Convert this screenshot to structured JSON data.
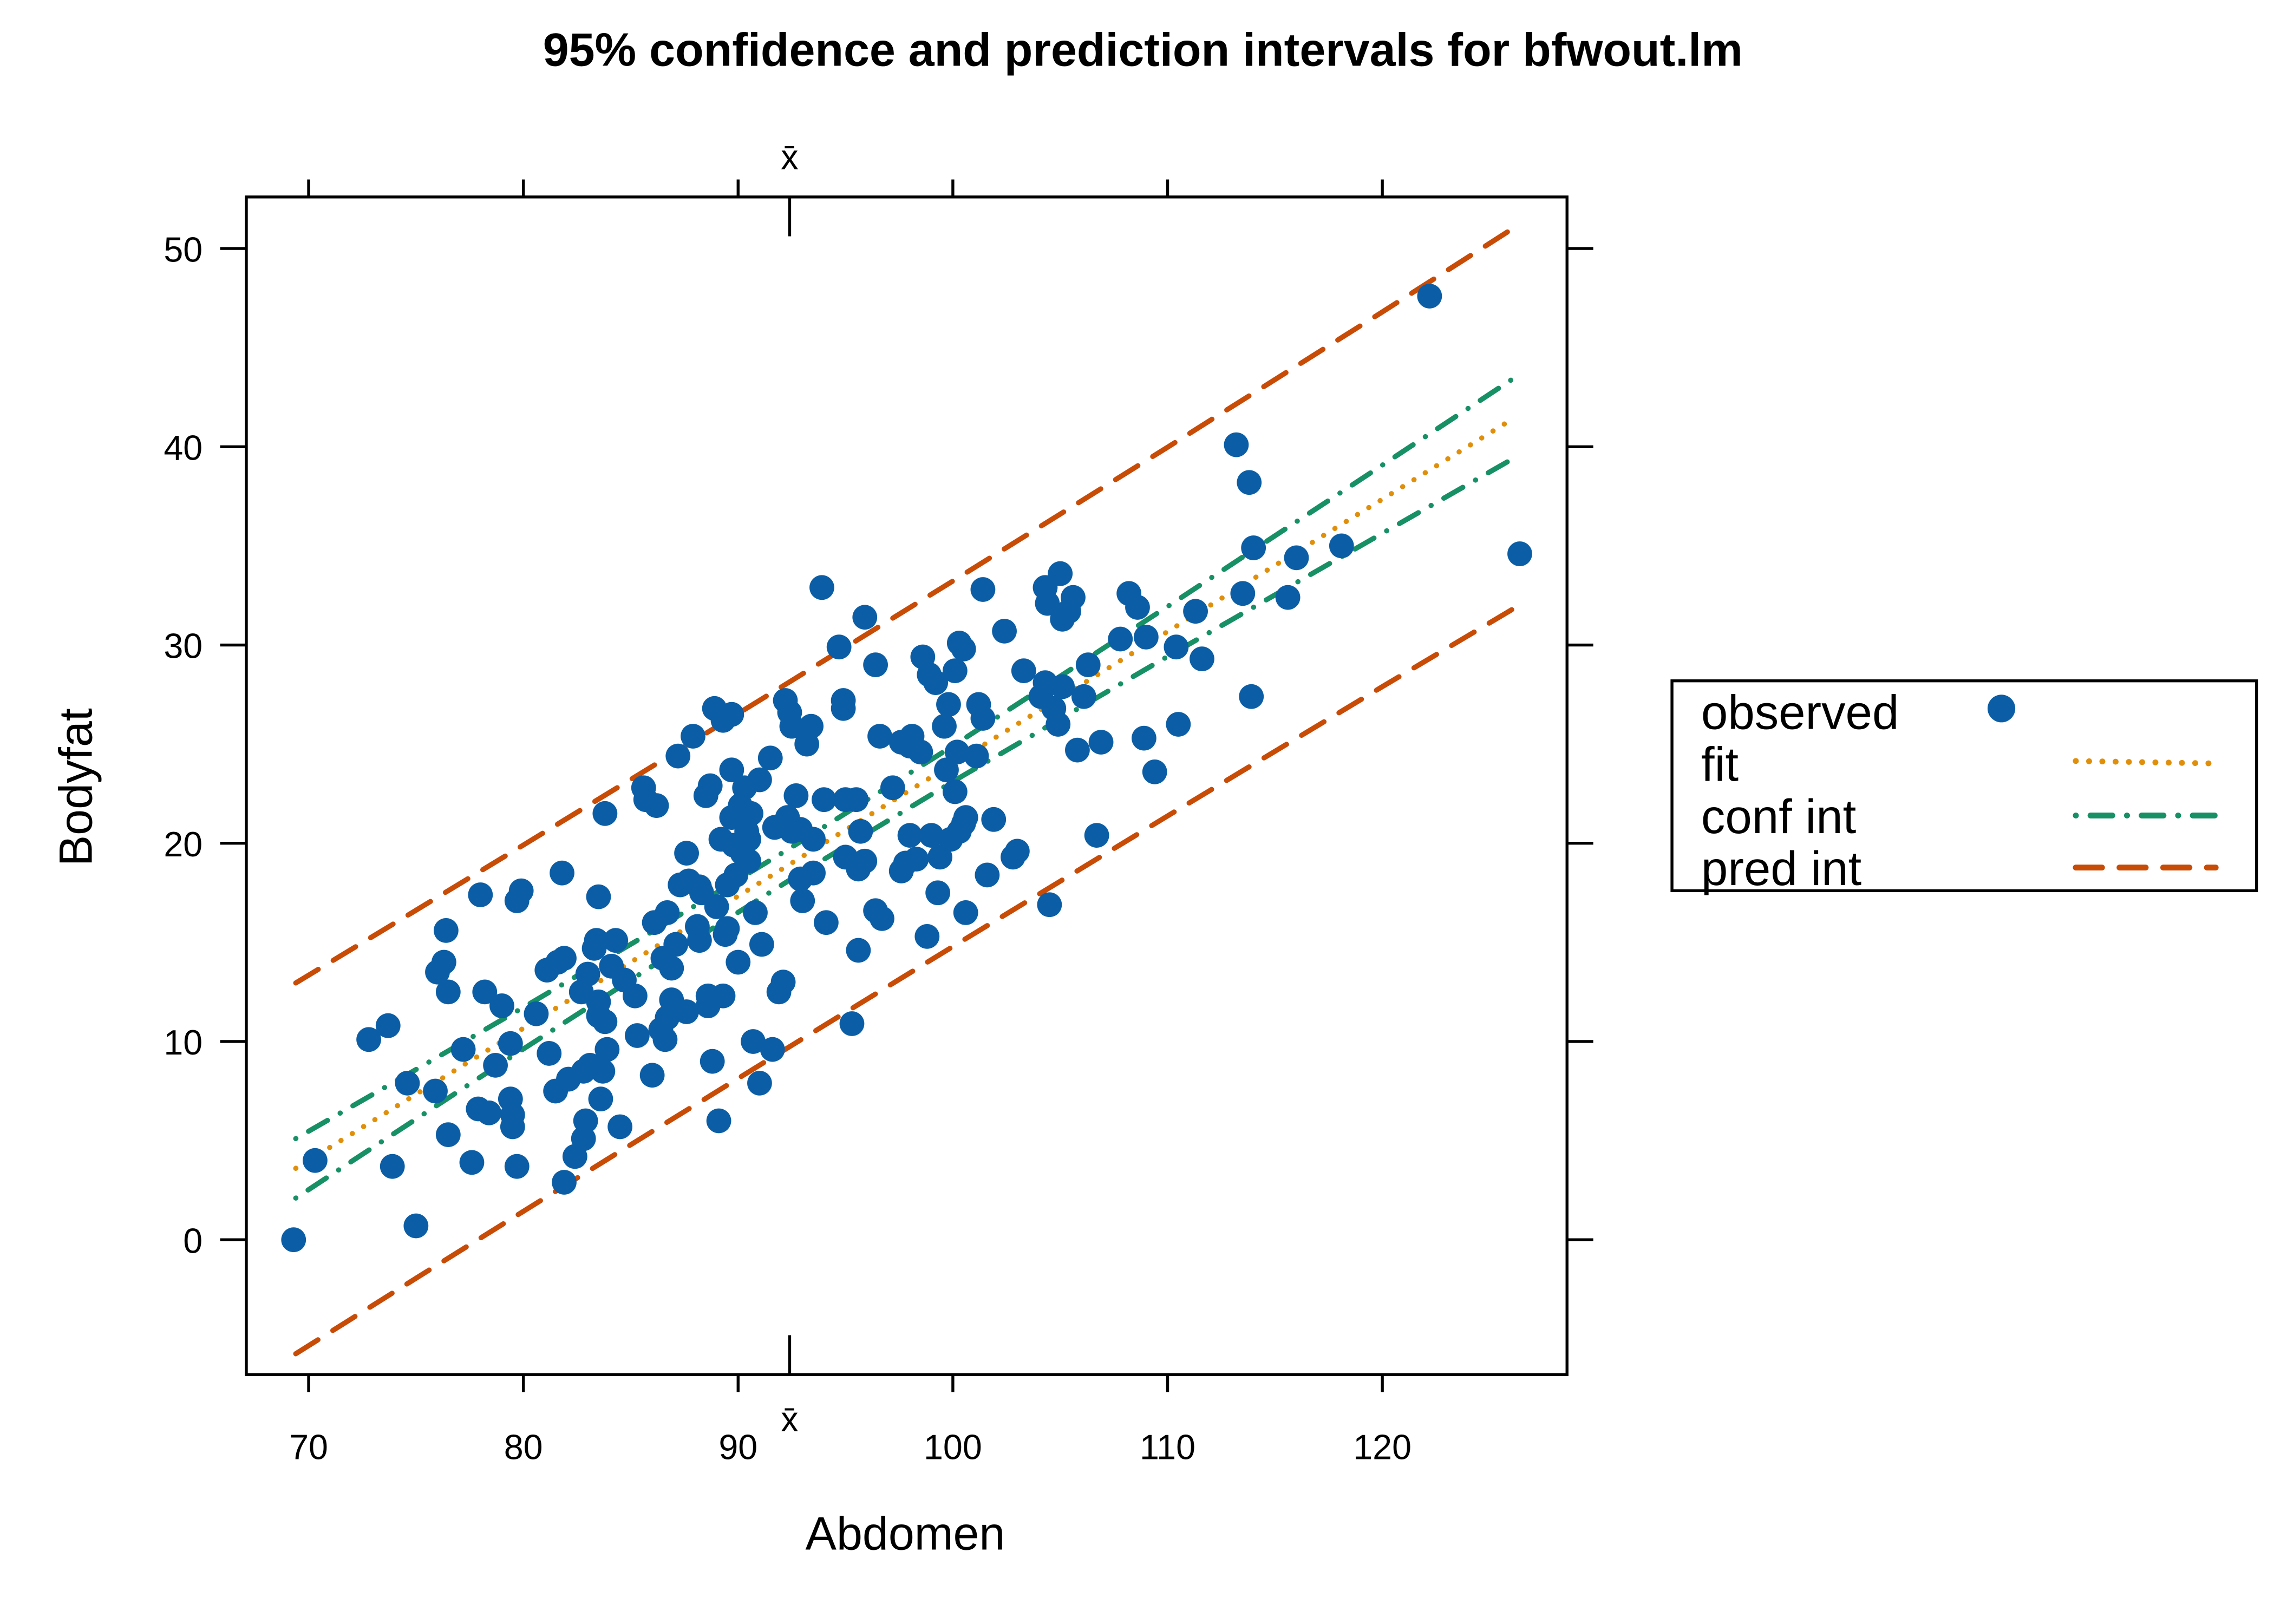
{
  "chart_data": {
    "type": "scatter",
    "title": "95% confidence and prediction intervals for bfwout.lm",
    "xlabel": "Abdomen",
    "ylabel": "Bodyfat",
    "xbar_label": "x̄",
    "xbar": 92.4,
    "xlim": [
      67.1,
      128.6
    ],
    "ylim": [
      -6.8,
      52.6
    ],
    "xticks": [
      70,
      80,
      90,
      100,
      110,
      120
    ],
    "yticks": [
      0,
      10,
      20,
      30,
      40,
      50
    ],
    "grid": false,
    "legend_position": "right",
    "colors": {
      "observed": "#0B5EA5",
      "fit": "#E08F0B",
      "conf": "#179066",
      "pred": "#C84B06"
    },
    "legend": [
      {
        "label": "observed",
        "kind": "point",
        "color": "#0B5EA5"
      },
      {
        "label": "fit",
        "kind": "dotted",
        "color": "#E08F0B"
      },
      {
        "label": "conf int",
        "kind": "dotdash",
        "color": "#179066"
      },
      {
        "label": "pred int",
        "kind": "dashed",
        "color": "#C84B06"
      }
    ],
    "lines_x": [
      69.4,
      75,
      80,
      86,
      92.4,
      100,
      110,
      120,
      126.2
    ],
    "series": [
      {
        "name": "fit",
        "style": "dotted",
        "color": "#E08F0B",
        "y": [
          3.6,
          7.34,
          10.67,
          14.67,
          18.94,
          24.01,
          30.68,
          37.35,
          41.49
        ]
      },
      {
        "name": "conf int upper",
        "style": "dotdash",
        "color": "#179066",
        "y": [
          5.1,
          8.59,
          11.72,
          15.54,
          19.74,
          24.91,
          31.94,
          39.07,
          43.51
        ]
      },
      {
        "name": "conf int lower",
        "style": "dotdash",
        "color": "#179066",
        "y": [
          2.1,
          6.09,
          9.62,
          13.8,
          18.14,
          23.11,
          29.42,
          35.63,
          39.47
        ]
      },
      {
        "name": "pred int upper",
        "style": "dashed",
        "color": "#C84B06",
        "y": [
          12.95,
          16.62,
          19.91,
          23.88,
          28.14,
          33.23,
          39.98,
          46.8,
          51.09
        ]
      },
      {
        "name": "pred int lower",
        "style": "dashed",
        "color": "#C84B06",
        "y": [
          -5.75,
          -1.94,
          1.43,
          5.46,
          9.74,
          14.79,
          21.38,
          27.9,
          31.89
        ]
      }
    ],
    "observed": [
      [
        69.3,
        0
      ],
      [
        70.3,
        4.0
      ],
      [
        72.8,
        10.1
      ],
      [
        73.7,
        10.8
      ],
      [
        73.9,
        3.7
      ],
      [
        74.6,
        7.9
      ],
      [
        75.0,
        0.7
      ],
      [
        75.9,
        7.5
      ],
      [
        76.0,
        13.5
      ],
      [
        76.3,
        14.0
      ],
      [
        76.4,
        15.6
      ],
      [
        76.5,
        12.5
      ],
      [
        76.5,
        5.3
      ],
      [
        77.2,
        9.6
      ],
      [
        77.6,
        3.9
      ],
      [
        78.0,
        17.4
      ],
      [
        77.9,
        6.6
      ],
      [
        78.2,
        12.5
      ],
      [
        78.4,
        6.4
      ],
      [
        78.7,
        8.8
      ],
      [
        79.0,
        11.8
      ],
      [
        79.4,
        9.9
      ],
      [
        79.4,
        7.1
      ],
      [
        79.5,
        6.3
      ],
      [
        79.5,
        5.7
      ],
      [
        79.7,
        17.1
      ],
      [
        79.7,
        3.7
      ],
      [
        79.9,
        17.6
      ],
      [
        80.6,
        11.4
      ],
      [
        81.1,
        13.6
      ],
      [
        81.2,
        9.4
      ],
      [
        81.6,
        14.0
      ],
      [
        81.5,
        7.5
      ],
      [
        81.8,
        18.5
      ],
      [
        81.9,
        14.2
      ],
      [
        81.9,
        2.9
      ],
      [
        82.1,
        8.1
      ],
      [
        82.4,
        4.2
      ],
      [
        82.7,
        12.5
      ],
      [
        82.8,
        8.5
      ],
      [
        82.8,
        5.1
      ],
      [
        82.9,
        6.0
      ],
      [
        83.0,
        13.4
      ],
      [
        83.1,
        8.8
      ],
      [
        83.3,
        14.7
      ],
      [
        83.4,
        15.1
      ],
      [
        83.5,
        17.3
      ],
      [
        83.5,
        12.0
      ],
      [
        83.5,
        11.3
      ],
      [
        83.6,
        7.1
      ],
      [
        83.7,
        8.5
      ],
      [
        83.8,
        21.5
      ],
      [
        83.8,
        11.0
      ],
      [
        83.9,
        9.6
      ],
      [
        84.1,
        13.8
      ],
      [
        84.3,
        15.1
      ],
      [
        84.5,
        5.7
      ],
      [
        84.7,
        13.1
      ],
      [
        85.2,
        12.3
      ],
      [
        85.3,
        10.3
      ],
      [
        85.6,
        22.8
      ],
      [
        85.7,
        22.2
      ],
      [
        86.0,
        8.3
      ],
      [
        86.1,
        16.0
      ],
      [
        86.2,
        21.9
      ],
      [
        86.4,
        10.6
      ],
      [
        86.5,
        14.2
      ],
      [
        86.6,
        10.1
      ],
      [
        86.7,
        16.5
      ],
      [
        86.7,
        11.2
      ],
      [
        86.9,
        12.1
      ],
      [
        86.9,
        13.7
      ],
      [
        87.1,
        14.9
      ],
      [
        87.2,
        24.4
      ],
      [
        87.3,
        17.9
      ],
      [
        87.6,
        19.5
      ],
      [
        87.6,
        11.5
      ],
      [
        87.7,
        18.1
      ],
      [
        87.9,
        25.4
      ],
      [
        88.1,
        15.8
      ],
      [
        88.2,
        17.8
      ],
      [
        88.2,
        15.1
      ],
      [
        88.3,
        17.5
      ],
      [
        88.5,
        22.4
      ],
      [
        88.6,
        12.3
      ],
      [
        88.6,
        11.8
      ],
      [
        88.7,
        22.9
      ],
      [
        88.8,
        9.0
      ],
      [
        88.9,
        26.8
      ],
      [
        89.0,
        16.8
      ],
      [
        89.1,
        6.0
      ],
      [
        89.2,
        20.2
      ],
      [
        89.3,
        12.3
      ],
      [
        89.3,
        26.2
      ],
      [
        89.4,
        15.4
      ],
      [
        89.5,
        17.9
      ],
      [
        89.5,
        15.7
      ],
      [
        89.7,
        26.5
      ],
      [
        89.7,
        21.3
      ],
      [
        89.7,
        23.7
      ],
      [
        89.8,
        19.9
      ],
      [
        89.9,
        18.4
      ],
      [
        90.0,
        14.0
      ],
      [
        90.1,
        21.9
      ],
      [
        90.2,
        19.5
      ],
      [
        90.3,
        22.8
      ],
      [
        90.4,
        20.6
      ],
      [
        90.5,
        20.2
      ],
      [
        90.5,
        19.1
      ],
      [
        90.6,
        21.5
      ],
      [
        90.7,
        10.0
      ],
      [
        90.8,
        16.5
      ],
      [
        91.0,
        23.2
      ],
      [
        91.0,
        7.9
      ],
      [
        91.1,
        14.9
      ],
      [
        91.5,
        24.3
      ],
      [
        91.6,
        9.6
      ],
      [
        91.7,
        20.8
      ],
      [
        91.9,
        12.5
      ],
      [
        92.1,
        13.0
      ],
      [
        92.2,
        27.2
      ],
      [
        92.3,
        21.3
      ],
      [
        92.4,
        26.6
      ],
      [
        92.5,
        25.9
      ],
      [
        92.5,
        20.6
      ],
      [
        92.7,
        22.4
      ],
      [
        92.9,
        20.7
      ],
      [
        92.9,
        18.2
      ],
      [
        93.0,
        17.1
      ],
      [
        93.2,
        25.0
      ],
      [
        93.4,
        25.9
      ],
      [
        93.5,
        18.5
      ],
      [
        93.5,
        20.2
      ],
      [
        93.9,
        32.9
      ],
      [
        94.0,
        22.2
      ],
      [
        94.1,
        16.0
      ],
      [
        94.7,
        29.9
      ],
      [
        94.9,
        26.8
      ],
      [
        94.9,
        27.2
      ],
      [
        95.0,
        22.2
      ],
      [
        95.0,
        19.3
      ],
      [
        95.3,
        10.9
      ],
      [
        95.5,
        22.2
      ],
      [
        95.6,
        18.7
      ],
      [
        95.6,
        14.6
      ],
      [
        95.7,
        20.6
      ],
      [
        95.9,
        31.4
      ],
      [
        95.9,
        19.1
      ],
      [
        96.4,
        29.0
      ],
      [
        96.4,
        16.6
      ],
      [
        96.6,
        25.4
      ],
      [
        96.7,
        16.2
      ],
      [
        97.2,
        22.8
      ],
      [
        97.6,
        25.1
      ],
      [
        97.6,
        18.6
      ],
      [
        97.8,
        19.0
      ],
      [
        98.0,
        20.4
      ],
      [
        98.0,
        24.9
      ],
      [
        98.1,
        25.4
      ],
      [
        98.3,
        19.2
      ],
      [
        98.5,
        24.6
      ],
      [
        98.6,
        29.4
      ],
      [
        98.8,
        15.3
      ],
      [
        98.9,
        28.5
      ],
      [
        99.0,
        20.4
      ],
      [
        99.2,
        28.1
      ],
      [
        99.3,
        17.5
      ],
      [
        99.4,
        19.3
      ],
      [
        99.6,
        25.9
      ],
      [
        99.7,
        23.7
      ],
      [
        99.8,
        27.0
      ],
      [
        99.9,
        20.2
      ],
      [
        100.1,
        28.7
      ],
      [
        100.1,
        22.6
      ],
      [
        100.2,
        24.6
      ],
      [
        100.3,
        30.1
      ],
      [
        100.3,
        20.6
      ],
      [
        100.5,
        21.0
      ],
      [
        100.5,
        29.8
      ],
      [
        100.6,
        21.3
      ],
      [
        100.6,
        16.5
      ],
      [
        101.1,
        24.4
      ],
      [
        101.2,
        27.0
      ],
      [
        101.4,
        32.8
      ],
      [
        101.4,
        26.3
      ],
      [
        101.6,
        18.4
      ],
      [
        101.9,
        21.2
      ],
      [
        102.4,
        30.7
      ],
      [
        102.8,
        19.3
      ],
      [
        103.0,
        19.6
      ],
      [
        103.3,
        28.7
      ],
      [
        104.1,
        27.4
      ],
      [
        104.3,
        32.9
      ],
      [
        104.4,
        32.1
      ],
      [
        104.3,
        28.1
      ],
      [
        104.5,
        16.9
      ],
      [
        104.7,
        26.8
      ],
      [
        104.9,
        26.0
      ],
      [
        105.0,
        33.6
      ],
      [
        105.1,
        31.3
      ],
      [
        105.1,
        27.9
      ],
      [
        105.4,
        31.7
      ],
      [
        105.6,
        32.4
      ],
      [
        105.8,
        24.7
      ],
      [
        106.1,
        27.4
      ],
      [
        106.3,
        29.0
      ],
      [
        106.7,
        20.4
      ],
      [
        106.9,
        25.1
      ],
      [
        107.8,
        30.3
      ],
      [
        108.2,
        32.6
      ],
      [
        108.6,
        31.9
      ],
      [
        108.9,
        25.3
      ],
      [
        109.0,
        30.4
      ],
      [
        109.4,
        23.6
      ],
      [
        110.4,
        29.9
      ],
      [
        110.5,
        26.0
      ],
      [
        111.3,
        31.7
      ],
      [
        111.6,
        29.3
      ],
      [
        113.2,
        40.1
      ],
      [
        113.5,
        32.6
      ],
      [
        113.8,
        38.2
      ],
      [
        113.9,
        27.4
      ],
      [
        114.0,
        34.9
      ],
      [
        115.6,
        32.4
      ],
      [
        116.0,
        34.4
      ],
      [
        118.1,
        35.0
      ],
      [
        122.2,
        47.6
      ],
      [
        126.4,
        34.6
      ]
    ]
  }
}
